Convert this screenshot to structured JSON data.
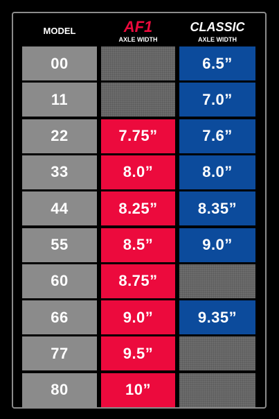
{
  "header": {
    "model": "MODEL",
    "af1": {
      "title": "AF1",
      "subtitle": "AXLE WIDTH"
    },
    "classic": {
      "title": "CLASSIC",
      "subtitle": "AXLE WIDTH"
    }
  },
  "table": {
    "rows": [
      [
        "00",
        null,
        "6.5”"
      ],
      [
        "11",
        null,
        "7.0”"
      ],
      [
        "22",
        "7.75”",
        "7.6”"
      ],
      [
        "33",
        "8.0”",
        "8.0”"
      ],
      [
        "44",
        "8.25”",
        "8.35”"
      ],
      [
        "55",
        "8.5”",
        "9.0”"
      ],
      [
        "60",
        "8.75”",
        null
      ],
      [
        "66",
        "9.0”",
        "9.35”"
      ],
      [
        "77",
        "9.5”",
        null
      ],
      [
        "80",
        "10”",
        null
      ]
    ]
  }
}
